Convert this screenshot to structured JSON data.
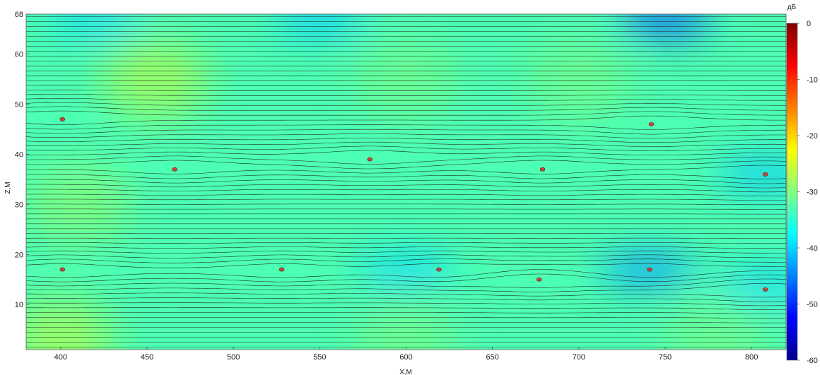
{
  "chart_data": {
    "type": "heatmap",
    "title": "",
    "xlabel": "X,M",
    "ylabel": "Z,M",
    "xlim": [
      380,
      820
    ],
    "ylim": [
      1,
      68
    ],
    "x_ticks": [
      400,
      450,
      500,
      550,
      600,
      650,
      700,
      750,
      800
    ],
    "y_ticks": [
      10,
      20,
      30,
      40,
      50,
      60,
      68
    ],
    "colorbar": {
      "label": "дБ",
      "range": [
        -60,
        0
      ],
      "ticks": [
        0,
        -10,
        -20,
        -30,
        -40,
        -50,
        -60
      ],
      "colormap": "jet"
    },
    "field_base_db": -33,
    "ray_count": 68,
    "grid": false,
    "sources": [
      {
        "x": 401,
        "z": 47
      },
      {
        "x": 466,
        "z": 37
      },
      {
        "x": 579,
        "z": 39
      },
      {
        "x": 679,
        "z": 37
      },
      {
        "x": 742,
        "z": 46
      },
      {
        "x": 808,
        "z": 36
      },
      {
        "x": 401,
        "z": 17
      },
      {
        "x": 528,
        "z": 17
      },
      {
        "x": 619,
        "z": 17
      },
      {
        "x": 677,
        "z": 15
      },
      {
        "x": 741,
        "z": 17
      },
      {
        "x": 808,
        "z": 13
      }
    ],
    "hot_spots": [
      {
        "x": 455,
        "z": 55,
        "db": -28
      },
      {
        "x": 400,
        "z": 3,
        "db": -28
      },
      {
        "x": 410,
        "z": 30,
        "db": -30
      },
      {
        "x": 700,
        "z": 55,
        "db": -31
      },
      {
        "x": 600,
        "z": 55,
        "db": -31
      },
      {
        "x": 780,
        "z": 3,
        "db": -31
      },
      {
        "x": 600,
        "z": 3,
        "db": -31
      }
    ],
    "cold_spots": [
      {
        "x": 750,
        "z": 67,
        "db": -48
      },
      {
        "x": 740,
        "z": 17,
        "db": -44
      },
      {
        "x": 600,
        "z": 17,
        "db": -40
      },
      {
        "x": 808,
        "z": 36,
        "db": -41
      },
      {
        "x": 808,
        "z": 14,
        "db": -40
      },
      {
        "x": 550,
        "z": 67,
        "db": -41
      },
      {
        "x": 420,
        "z": 67,
        "db": -40
      }
    ]
  },
  "source_color": "#c8453b",
  "ray_color": "#1a1a1a"
}
